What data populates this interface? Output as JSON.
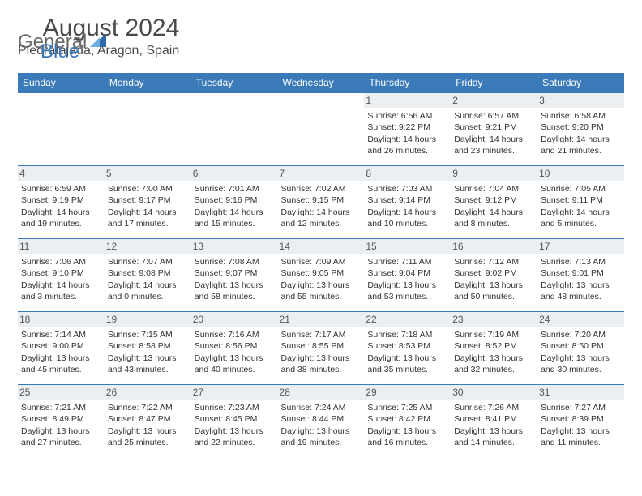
{
  "logo": {
    "general": "General",
    "blue": "Blue"
  },
  "title": "August 2024",
  "location": "Piedratajada, Aragon, Spain",
  "colors": {
    "header_bg": "#3a7ab8",
    "header_text": "#ffffff",
    "daynum_bg": "#eceff1",
    "border": "#3a7ab8",
    "text": "#333333"
  },
  "fonts": {
    "title_size": 30,
    "location_size": 16,
    "header_size": 12,
    "body_size": 10.5
  },
  "weekdays": [
    "Sunday",
    "Monday",
    "Tuesday",
    "Wednesday",
    "Thursday",
    "Friday",
    "Saturday"
  ],
  "weeks": [
    [
      {
        "day": "",
        "sunrise": "",
        "sunset": "",
        "daylight": "",
        "empty": true
      },
      {
        "day": "",
        "sunrise": "",
        "sunset": "",
        "daylight": "",
        "empty": true
      },
      {
        "day": "",
        "sunrise": "",
        "sunset": "",
        "daylight": "",
        "empty": true
      },
      {
        "day": "",
        "sunrise": "",
        "sunset": "",
        "daylight": "",
        "empty": true
      },
      {
        "day": "1",
        "sunrise": "Sunrise: 6:56 AM",
        "sunset": "Sunset: 9:22 PM",
        "daylight": "Daylight: 14 hours and 26 minutes."
      },
      {
        "day": "2",
        "sunrise": "Sunrise: 6:57 AM",
        "sunset": "Sunset: 9:21 PM",
        "daylight": "Daylight: 14 hours and 23 minutes."
      },
      {
        "day": "3",
        "sunrise": "Sunrise: 6:58 AM",
        "sunset": "Sunset: 9:20 PM",
        "daylight": "Daylight: 14 hours and 21 minutes."
      }
    ],
    [
      {
        "day": "4",
        "sunrise": "Sunrise: 6:59 AM",
        "sunset": "Sunset: 9:19 PM",
        "daylight": "Daylight: 14 hours and 19 minutes."
      },
      {
        "day": "5",
        "sunrise": "Sunrise: 7:00 AM",
        "sunset": "Sunset: 9:17 PM",
        "daylight": "Daylight: 14 hours and 17 minutes."
      },
      {
        "day": "6",
        "sunrise": "Sunrise: 7:01 AM",
        "sunset": "Sunset: 9:16 PM",
        "daylight": "Daylight: 14 hours and 15 minutes."
      },
      {
        "day": "7",
        "sunrise": "Sunrise: 7:02 AM",
        "sunset": "Sunset: 9:15 PM",
        "daylight": "Daylight: 14 hours and 12 minutes."
      },
      {
        "day": "8",
        "sunrise": "Sunrise: 7:03 AM",
        "sunset": "Sunset: 9:14 PM",
        "daylight": "Daylight: 14 hours and 10 minutes."
      },
      {
        "day": "9",
        "sunrise": "Sunrise: 7:04 AM",
        "sunset": "Sunset: 9:12 PM",
        "daylight": "Daylight: 14 hours and 8 minutes."
      },
      {
        "day": "10",
        "sunrise": "Sunrise: 7:05 AM",
        "sunset": "Sunset: 9:11 PM",
        "daylight": "Daylight: 14 hours and 5 minutes."
      }
    ],
    [
      {
        "day": "11",
        "sunrise": "Sunrise: 7:06 AM",
        "sunset": "Sunset: 9:10 PM",
        "daylight": "Daylight: 14 hours and 3 minutes."
      },
      {
        "day": "12",
        "sunrise": "Sunrise: 7:07 AM",
        "sunset": "Sunset: 9:08 PM",
        "daylight": "Daylight: 14 hours and 0 minutes."
      },
      {
        "day": "13",
        "sunrise": "Sunrise: 7:08 AM",
        "sunset": "Sunset: 9:07 PM",
        "daylight": "Daylight: 13 hours and 58 minutes."
      },
      {
        "day": "14",
        "sunrise": "Sunrise: 7:09 AM",
        "sunset": "Sunset: 9:05 PM",
        "daylight": "Daylight: 13 hours and 55 minutes."
      },
      {
        "day": "15",
        "sunrise": "Sunrise: 7:11 AM",
        "sunset": "Sunset: 9:04 PM",
        "daylight": "Daylight: 13 hours and 53 minutes."
      },
      {
        "day": "16",
        "sunrise": "Sunrise: 7:12 AM",
        "sunset": "Sunset: 9:02 PM",
        "daylight": "Daylight: 13 hours and 50 minutes."
      },
      {
        "day": "17",
        "sunrise": "Sunrise: 7:13 AM",
        "sunset": "Sunset: 9:01 PM",
        "daylight": "Daylight: 13 hours and 48 minutes."
      }
    ],
    [
      {
        "day": "18",
        "sunrise": "Sunrise: 7:14 AM",
        "sunset": "Sunset: 9:00 PM",
        "daylight": "Daylight: 13 hours and 45 minutes."
      },
      {
        "day": "19",
        "sunrise": "Sunrise: 7:15 AM",
        "sunset": "Sunset: 8:58 PM",
        "daylight": "Daylight: 13 hours and 43 minutes."
      },
      {
        "day": "20",
        "sunrise": "Sunrise: 7:16 AM",
        "sunset": "Sunset: 8:56 PM",
        "daylight": "Daylight: 13 hours and 40 minutes."
      },
      {
        "day": "21",
        "sunrise": "Sunrise: 7:17 AM",
        "sunset": "Sunset: 8:55 PM",
        "daylight": "Daylight: 13 hours and 38 minutes."
      },
      {
        "day": "22",
        "sunrise": "Sunrise: 7:18 AM",
        "sunset": "Sunset: 8:53 PM",
        "daylight": "Daylight: 13 hours and 35 minutes."
      },
      {
        "day": "23",
        "sunrise": "Sunrise: 7:19 AM",
        "sunset": "Sunset: 8:52 PM",
        "daylight": "Daylight: 13 hours and 32 minutes."
      },
      {
        "day": "24",
        "sunrise": "Sunrise: 7:20 AM",
        "sunset": "Sunset: 8:50 PM",
        "daylight": "Daylight: 13 hours and 30 minutes."
      }
    ],
    [
      {
        "day": "25",
        "sunrise": "Sunrise: 7:21 AM",
        "sunset": "Sunset: 8:49 PM",
        "daylight": "Daylight: 13 hours and 27 minutes."
      },
      {
        "day": "26",
        "sunrise": "Sunrise: 7:22 AM",
        "sunset": "Sunset: 8:47 PM",
        "daylight": "Daylight: 13 hours and 25 minutes."
      },
      {
        "day": "27",
        "sunrise": "Sunrise: 7:23 AM",
        "sunset": "Sunset: 8:45 PM",
        "daylight": "Daylight: 13 hours and 22 minutes."
      },
      {
        "day": "28",
        "sunrise": "Sunrise: 7:24 AM",
        "sunset": "Sunset: 8:44 PM",
        "daylight": "Daylight: 13 hours and 19 minutes."
      },
      {
        "day": "29",
        "sunrise": "Sunrise: 7:25 AM",
        "sunset": "Sunset: 8:42 PM",
        "daylight": "Daylight: 13 hours and 16 minutes."
      },
      {
        "day": "30",
        "sunrise": "Sunrise: 7:26 AM",
        "sunset": "Sunset: 8:41 PM",
        "daylight": "Daylight: 13 hours and 14 minutes."
      },
      {
        "day": "31",
        "sunrise": "Sunrise: 7:27 AM",
        "sunset": "Sunset: 8:39 PM",
        "daylight": "Daylight: 13 hours and 11 minutes."
      }
    ]
  ]
}
